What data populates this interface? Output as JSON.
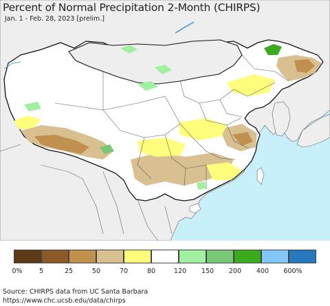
{
  "header": {
    "title": "Percent of Normal Precipitation 2-Month (CHIRPS)",
    "subtitle": "Jan. 1 - Feb. 28, 2023 [prelim.]"
  },
  "legend": {
    "colors": [
      "#5b3a14",
      "#8c5a28",
      "#c0904e",
      "#d8c090",
      "#fefe7c",
      "#ffffff",
      "#a0f0a0",
      "#78c878",
      "#3caa1e",
      "#82c8ff",
      "#2878be"
    ],
    "labels": [
      "0%",
      "5",
      "25",
      "50",
      "70",
      "80",
      "120",
      "150",
      "200",
      "400",
      "600%"
    ]
  },
  "source": {
    "line1": "Source: CHIRPS data from UC Santa Barbara",
    "line2": "https://www.chc.ucsb.edu/data/chirps"
  }
}
